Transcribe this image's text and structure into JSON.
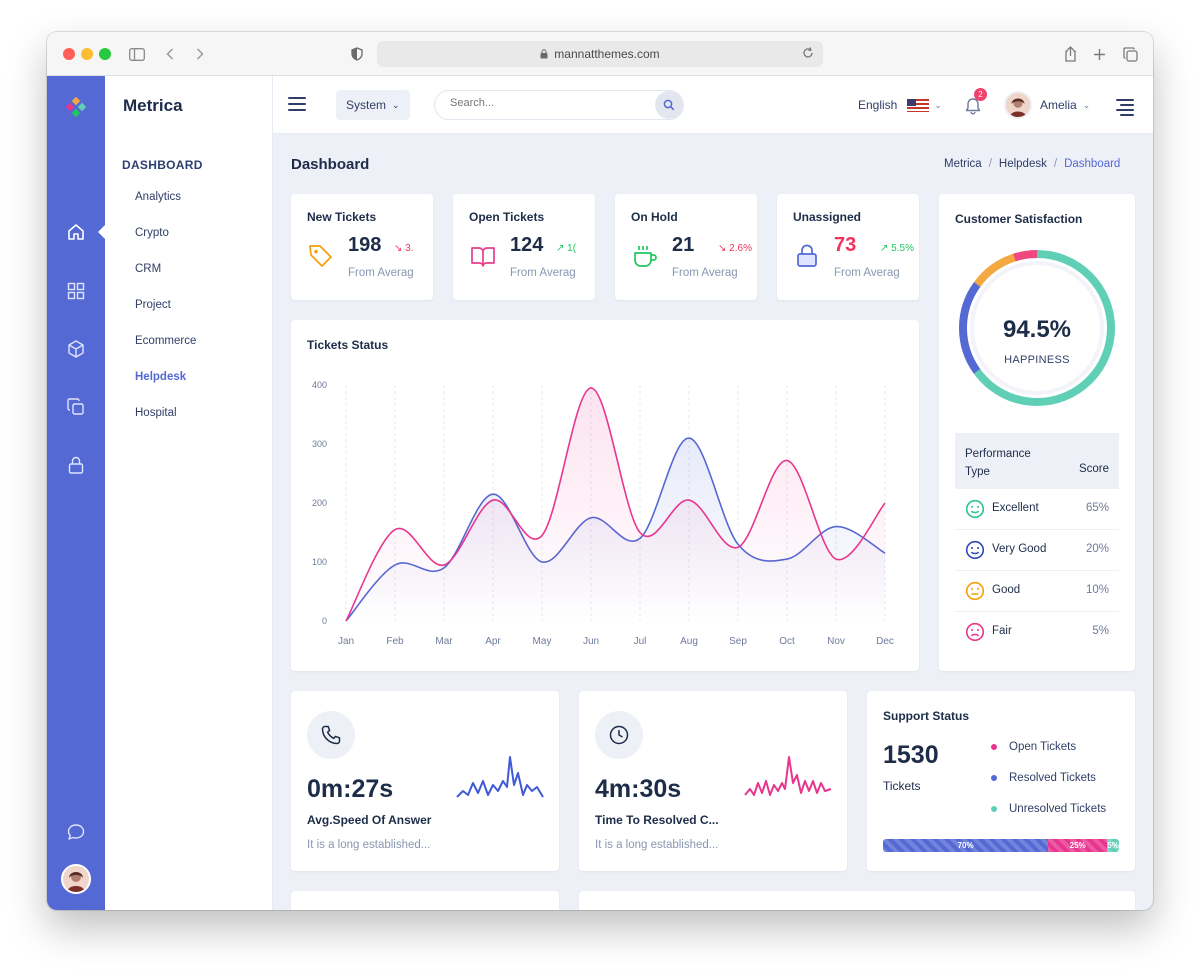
{
  "browser": {
    "url": "mannatthemes.com"
  },
  "sidebar": {
    "brand": "Metrica",
    "section_title": "DASHBOARD",
    "items": [
      {
        "label": "Analytics"
      },
      {
        "label": "Crypto"
      },
      {
        "label": "CRM"
      },
      {
        "label": "Project"
      },
      {
        "label": "Ecommerce"
      },
      {
        "label": "Helpdesk",
        "active": true
      },
      {
        "label": "Hospital"
      }
    ],
    "rail_icons": [
      "home-icon",
      "apps-grid-icon",
      "box-icon",
      "copy-icon",
      "lock-icon",
      "chat-icon"
    ]
  },
  "topbar": {
    "system_label": "System",
    "search_placeholder": "Search...",
    "language": "English",
    "notification_count": "2",
    "user_name": "Amelia"
  },
  "page": {
    "title": "Dashboard",
    "breadcrumb": [
      "Metrica",
      "Helpdesk",
      "Dashboard"
    ]
  },
  "stats": [
    {
      "title": "New Tickets",
      "value": "198",
      "change": "3.",
      "direction": "down",
      "sub": "From Averag",
      "icon": "tag-icon",
      "color": "#f59e0b"
    },
    {
      "title": "Open Tickets",
      "value": "124",
      "change": "1(",
      "direction": "up",
      "sub": "From Averag",
      "icon": "book-open-icon",
      "color": "#e83e8c"
    },
    {
      "title": "On Hold",
      "value": "21",
      "change": "2.6%",
      "direction": "down",
      "sub": "From Averag",
      "icon": "coffee-icon",
      "color": "#22c55e"
    },
    {
      "title": "Unassigned",
      "value": "73",
      "change": "5.5%",
      "direction": "up",
      "sub": "From Averag",
      "icon": "lock-icon",
      "color": "#5469d4"
    }
  ],
  "chart_data": {
    "type": "line",
    "title": "Tickets Status",
    "categories": [
      "Jan",
      "Feb",
      "Mar",
      "Apr",
      "May",
      "Jun",
      "Jul",
      "Aug",
      "Sep",
      "Oct",
      "Nov",
      "Dec"
    ],
    "yticks": [
      "0",
      "100",
      "200",
      "300",
      "400"
    ],
    "ylim": [
      0,
      400
    ],
    "grid": true,
    "series": [
      {
        "color": "#5469d4",
        "values": [
          0,
          95,
          90,
          215,
          100,
          175,
          140,
          310,
          130,
          105,
          160,
          115
        ]
      },
      {
        "color": "#e8368f",
        "values": [
          0,
          155,
          95,
          205,
          145,
          395,
          150,
          205,
          125,
          272,
          105,
          200
        ]
      }
    ]
  },
  "satisfaction": {
    "title": "Customer Satisfaction",
    "value": "94.5%",
    "label": "HAPPINESS",
    "segments": [
      {
        "value": 65,
        "color": "#5fd0b5"
      },
      {
        "value": 20,
        "color": "#5469d4"
      },
      {
        "value": 10,
        "color": "#f5a742"
      },
      {
        "value": 5,
        "color": "#f0487e"
      }
    ],
    "table_head": {
      "type": "Performance Type",
      "score": "Score"
    },
    "rows": [
      {
        "name": "Excellent",
        "score": "65%",
        "icon": "smile-icon",
        "color": "#2bc48a"
      },
      {
        "name": "Very Good",
        "score": "20%",
        "icon": "smile-icon",
        "color": "#2c4ab8"
      },
      {
        "name": "Good",
        "score": "10%",
        "icon": "meh-icon",
        "color": "#f59e0b"
      },
      {
        "name": "Fair",
        "score": "5%",
        "icon": "frown-icon",
        "color": "#e8368f"
      }
    ]
  },
  "metrics": [
    {
      "value": "0m:27s",
      "label": "Avg.Speed Of Answer",
      "sub": "It is a long established...",
      "icon": "phone-icon",
      "spark_color": "#3f5ad6"
    },
    {
      "value": "4m:30s",
      "label": "Time To Resolved C...",
      "sub": "It is a long established...",
      "icon": "clock-icon",
      "spark_color": "#e8368f"
    }
  ],
  "support": {
    "title": "Support Status",
    "total": "1530",
    "unit": "Tickets",
    "legend": [
      {
        "label": "Open Tickets",
        "color": "#e8368f"
      },
      {
        "label": "Resolved Tickets",
        "color": "#5469d4"
      },
      {
        "label": "Unresolved Tickets",
        "color": "#5fd0b5"
      }
    ],
    "progress": [
      {
        "label": "70%",
        "value": 70,
        "color": "#5469d4"
      },
      {
        "label": "25%",
        "value": 25,
        "color": "#e8368f"
      },
      {
        "label": "5%",
        "value": 5,
        "color": "#5fd0b5"
      }
    ]
  }
}
